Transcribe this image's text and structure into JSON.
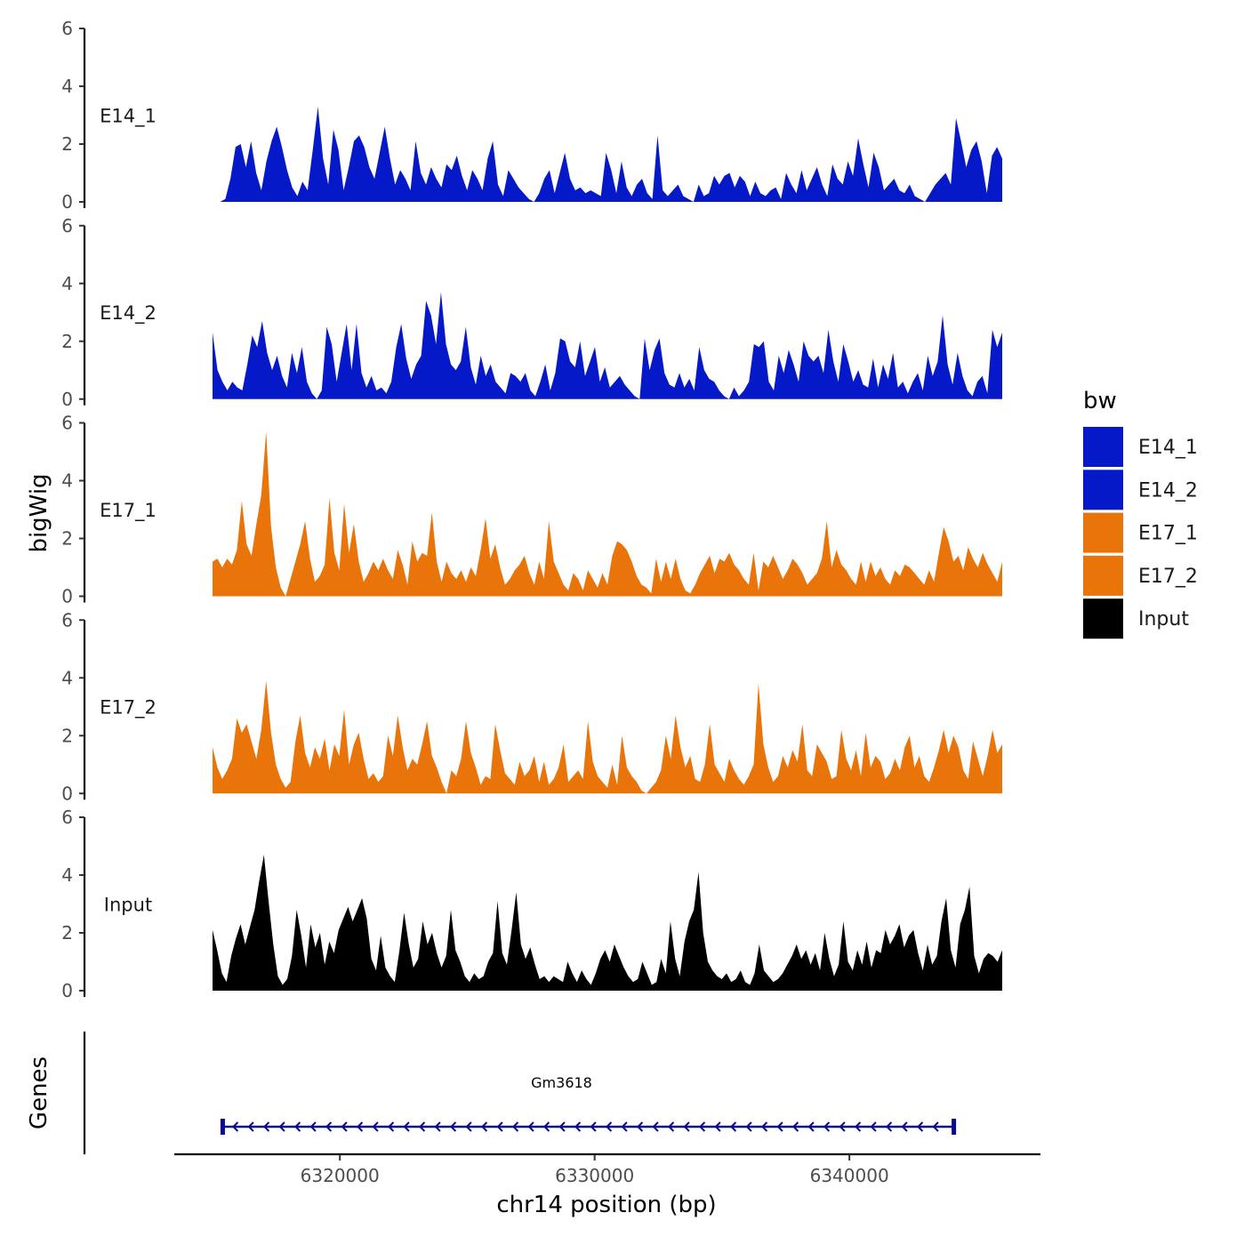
{
  "chart_data": {
    "type": "area",
    "ylabel": "bigWig",
    "xlabel": "chr14 position (bp)",
    "xlim": [
      6313500,
      6347500
    ],
    "ylim": [
      0,
      6
    ],
    "y_ticks": [
      0,
      2,
      4,
      6
    ],
    "x_ticks": [
      6320000,
      6330000,
      6340000
    ],
    "x_tick_labels": [
      "6320000",
      "6330000",
      "6340000"
    ],
    "legend_title": "bw",
    "legend_position": "right",
    "colors": {
      "E14": "#0519C8",
      "E17": "#E8740A",
      "Input": "#000000",
      "gene": "#0A0A8C"
    },
    "series": [
      {
        "name": "E14_1",
        "color": "#0519C8",
        "start": 6315300,
        "end": 6346000,
        "values": [
          0,
          0.1,
          0.8,
          1.9,
          2.0,
          1.2,
          2.1,
          1.0,
          0.4,
          1.4,
          2.1,
          2.6,
          1.9,
          1.1,
          0.5,
          0.2,
          0.7,
          0.4,
          1.8,
          3.3,
          1.5,
          0.6,
          2.5,
          1.8,
          0.4,
          1.2,
          2.1,
          2.3,
          1.9,
          1.2,
          0.8,
          1.7,
          2.6,
          1.5,
          0.6,
          1.1,
          0.8,
          0.4,
          2.1,
          1.0,
          0.6,
          1.2,
          0.8,
          0.5,
          1.3,
          1.1,
          1.6,
          0.9,
          0.4,
          1.1,
          0.8,
          0.4,
          1.5,
          2.1,
          0.6,
          0.2,
          1.1,
          0.8,
          0.5,
          0.3,
          0.1,
          0,
          0.3,
          0.8,
          1.1,
          0.3,
          1.0,
          1.7,
          0.8,
          0.4,
          0.5,
          0.3,
          0.4,
          0.3,
          0.2,
          1.7,
          1.1,
          0.3,
          1.4,
          0.5,
          0.2,
          0.6,
          0.8,
          0.3,
          0.1,
          2.3,
          0.4,
          0.2,
          0.4,
          0.6,
          0.2,
          0.1,
          0,
          0.6,
          0.2,
          0.3,
          0.9,
          0.6,
          0.9,
          1.0,
          0.5,
          0.9,
          0.7,
          0.2,
          0.7,
          0.3,
          0.2,
          0.4,
          0.5,
          0.1,
          1.0,
          0.6,
          0.3,
          1.1,
          0.4,
          0.8,
          1.2,
          0.6,
          0.2,
          1.3,
          0.8,
          0.6,
          1.4,
          0.9,
          2.2,
          1.3,
          0.5,
          1.7,
          1.2,
          0.4,
          0.6,
          0.8,
          0.4,
          0.3,
          0.6,
          0.2,
          0.1,
          0,
          0.3,
          0.6,
          0.8,
          1.0,
          0.6,
          2.9,
          2.1,
          1.2,
          1.8,
          2.1,
          1.4,
          0.3,
          1.6,
          1.9,
          1.5
        ]
      },
      {
        "name": "E14_2",
        "color": "#0519C8",
        "start": 6315000,
        "end": 6346000,
        "values": [
          2.3,
          1.0,
          0.6,
          0.3,
          0.6,
          0.4,
          0.3,
          1.2,
          2.2,
          1.8,
          2.7,
          1.6,
          1.0,
          1.5,
          0.8,
          0.4,
          1.6,
          0.9,
          1.8,
          0.6,
          0.2,
          0,
          0.3,
          2.5,
          1.9,
          0.6,
          1.6,
          2.6,
          1.0,
          2.6,
          0.9,
          0.4,
          0.8,
          0.3,
          0.4,
          0.2,
          0.6,
          1.8,
          2.6,
          1.4,
          0.7,
          1.2,
          1.5,
          3.4,
          2.9,
          1.9,
          3.7,
          1.9,
          1.2,
          1.0,
          1.3,
          2.5,
          1.1,
          0.5,
          1.5,
          0.8,
          1.2,
          0.6,
          0.4,
          0.2,
          0.9,
          0.8,
          0.6,
          0.9,
          0.3,
          0.1,
          0.6,
          1.2,
          0.3,
          0.9,
          2.1,
          2.0,
          1.3,
          1.1,
          2.0,
          0.8,
          1.3,
          1.8,
          0.6,
          1.1,
          0.4,
          0.6,
          0.8,
          0.5,
          0.3,
          0.1,
          0,
          2.1,
          1.0,
          1.7,
          2.1,
          0.9,
          0.5,
          0.4,
          0.9,
          0.4,
          0.7,
          0.3,
          1.8,
          1.0,
          0.7,
          0.6,
          0.3,
          0.1,
          0,
          0.4,
          0.1,
          0.3,
          0.6,
          1.9,
          1.8,
          2.0,
          0.6,
          0.3,
          1.5,
          0.9,
          1.7,
          1.2,
          0.6,
          2.0,
          1.5,
          1.3,
          1.5,
          0.9,
          2.4,
          1.3,
          0.6,
          1.9,
          1.3,
          0.6,
          1.0,
          0.5,
          0.4,
          1.4,
          0.4,
          1.2,
          0.7,
          1.6,
          0.4,
          0.6,
          0.2,
          0.6,
          0.9,
          0.3,
          1.5,
          0.8,
          1.3,
          2.9,
          1.2,
          0.5,
          1.6,
          0.8,
          0.3,
          0.1,
          0.6,
          0.8,
          0.2,
          2.4,
          1.8,
          2.3
        ]
      },
      {
        "name": "E17_1",
        "color": "#E8740A",
        "start": 6315000,
        "end": 6346000,
        "values": [
          1.2,
          1.3,
          1.0,
          1.3,
          1.1,
          1.6,
          3.3,
          1.8,
          1.4,
          2.5,
          3.5,
          5.7,
          2.4,
          1.0,
          0.3,
          0,
          0.6,
          1.2,
          1.8,
          2.6,
          1.3,
          0.5,
          0.7,
          1.1,
          3.4,
          1.5,
          0.9,
          3.2,
          1.5,
          2.5,
          1.2,
          0.5,
          0.8,
          1.2,
          0.9,
          1.3,
          0.9,
          0.6,
          1.6,
          1.1,
          0.4,
          1.9,
          1.2,
          1.5,
          1.4,
          2.9,
          1.2,
          0.5,
          1.2,
          0.8,
          0.6,
          0.9,
          0.5,
          1.0,
          0.7,
          1.6,
          2.7,
          1.3,
          1.8,
          1.0,
          0.4,
          0.6,
          0.9,
          1.1,
          1.4,
          0.8,
          0.4,
          1.2,
          0.6,
          2.6,
          1.2,
          0.8,
          0.4,
          0.2,
          0.8,
          0.6,
          0.2,
          0.9,
          0.6,
          0.3,
          0.8,
          0.4,
          1.4,
          1.9,
          1.8,
          1.6,
          1.2,
          0.7,
          0.4,
          0.3,
          0.1,
          1.3,
          0.5,
          1.2,
          0.6,
          1.3,
          0.6,
          0.2,
          0.1,
          0.4,
          0.8,
          1.1,
          1.4,
          0.8,
          1.3,
          1.2,
          1.5,
          1.1,
          0.9,
          0.6,
          0.4,
          1.5,
          0.2,
          1.2,
          1.0,
          1.4,
          1.0,
          0.6,
          0.9,
          1.3,
          1.1,
          0.8,
          0.4,
          0.6,
          0.8,
          1.3,
          2.6,
          1.0,
          1.6,
          1.1,
          0.9,
          0.6,
          0.4,
          1.2,
          0.5,
          1.2,
          0.7,
          1.0,
          0.6,
          0.4,
          0.9,
          0.7,
          1.1,
          1.0,
          0.8,
          0.6,
          0.4,
          0.9,
          0.5,
          1.5,
          2.4,
          1.9,
          1.2,
          1.4,
          0.9,
          1.7,
          1.3,
          1.0,
          1.5,
          1.1,
          0.8,
          0.5,
          1.2
        ]
      },
      {
        "name": "E17_2",
        "color": "#E8740A",
        "start": 6315000,
        "end": 6346000,
        "values": [
          1.6,
          0.9,
          0.5,
          0.8,
          1.2,
          2.6,
          2.1,
          2.4,
          1.8,
          1.2,
          2.2,
          3.9,
          2.1,
          1.0,
          0.5,
          0.2,
          0.4,
          1.8,
          2.7,
          1.4,
          0.9,
          1.6,
          1.2,
          1.9,
          0.8,
          1.7,
          1.3,
          2.9,
          1.0,
          1.7,
          2.1,
          1.2,
          0.5,
          0.7,
          0.4,
          0.6,
          2.0,
          1.3,
          2.7,
          1.6,
          0.8,
          1.2,
          1.0,
          1.7,
          2.5,
          1.3,
          0.9,
          0.4,
          0,
          0.8,
          0.6,
          1.2,
          2.5,
          1.4,
          0.9,
          0.3,
          0.6,
          0.5,
          2.4,
          1.5,
          0.7,
          0.5,
          0.3,
          1.1,
          0.6,
          0.8,
          1.3,
          0.4,
          1.1,
          0.3,
          0.5,
          0.9,
          1.7,
          0.4,
          0.6,
          0.8,
          0.5,
          2.5,
          1.1,
          0.6,
          0.4,
          0.2,
          1.0,
          0.3,
          2.0,
          0.9,
          0.6,
          0.4,
          0.1,
          0,
          0.2,
          0.4,
          0.8,
          2.0,
          1.2,
          2.7,
          1.6,
          0.9,
          1.3,
          0.5,
          0.4,
          1.0,
          2.4,
          1.0,
          0.7,
          0.4,
          1.2,
          0.8,
          0.5,
          0.3,
          0.6,
          1.0,
          3.8,
          1.7,
          0.9,
          0.4,
          0.6,
          1.3,
          0.9,
          1.5,
          1.1,
          2.4,
          0.8,
          0.6,
          1.7,
          1.4,
          1.1,
          0.5,
          0.6,
          2.2,
          1.2,
          0.8,
          1.5,
          0.6,
          2.1,
          0.9,
          1.3,
          1.1,
          0.5,
          0.7,
          1.2,
          0.8,
          1.6,
          2.0,
          0.9,
          1.3,
          0.6,
          0.4,
          0.9,
          1.5,
          2.2,
          1.4,
          2.0,
          1.6,
          0.8,
          0.5,
          1.8,
          1.2,
          0.6,
          1.3,
          2.2,
          1.4,
          1.7
        ]
      },
      {
        "name": "Input",
        "color": "#000000",
        "start": 6315000,
        "end": 6346000,
        "values": [
          2.1,
          1.4,
          0.6,
          0.3,
          1.2,
          1.8,
          2.3,
          1.6,
          2.2,
          2.8,
          3.8,
          4.7,
          3.1,
          1.6,
          0.5,
          0.2,
          0.4,
          1.2,
          2.8,
          1.9,
          0.8,
          2.3,
          1.5,
          2.0,
          0.9,
          1.7,
          1.3,
          2.1,
          2.5,
          2.9,
          2.4,
          2.8,
          3.2,
          2.5,
          1.1,
          0.7,
          1.9,
          0.8,
          0.5,
          0.3,
          1.4,
          2.7,
          1.6,
          0.8,
          1.1,
          2.4,
          1.6,
          2.0,
          1.3,
          0.8,
          1.2,
          2.8,
          1.4,
          1.0,
          0.5,
          0.3,
          0.6,
          0.4,
          0.5,
          1.0,
          1.3,
          3.1,
          1.3,
          0.9,
          2.1,
          3.4,
          1.6,
          1.1,
          1.5,
          0.9,
          0.4,
          0.5,
          0.3,
          0.5,
          0.4,
          0.3,
          1.0,
          0.6,
          0.3,
          0.7,
          0.4,
          0.2,
          0.6,
          1.1,
          1.4,
          1.0,
          1.6,
          1.2,
          0.8,
          0.5,
          0.3,
          0.4,
          1.0,
          0.6,
          0.2,
          0.3,
          1.1,
          0.6,
          2.4,
          1.1,
          0.5,
          1.7,
          2.4,
          2.8,
          4.1,
          2.0,
          1.0,
          0.7,
          0.5,
          0.4,
          0.6,
          0.3,
          0.4,
          0.7,
          0.3,
          0.2,
          0.6,
          1.6,
          0.7,
          0.5,
          0.3,
          0.4,
          0.6,
          0.9,
          1.2,
          1.6,
          1.1,
          1.4,
          0.9,
          1.3,
          0.7,
          2.0,
          1.1,
          0.5,
          0.9,
          2.4,
          1.0,
          0.7,
          1.4,
          0.9,
          1.7,
          0.8,
          1.4,
          1.3,
          2.1,
          1.6,
          1.9,
          2.3,
          1.5,
          1.9,
          2.1,
          1.3,
          0.7,
          1.6,
          0.9,
          1.2,
          2.4,
          3.2,
          1.4,
          0.8,
          2.3,
          2.8,
          3.6,
          1.2,
          0.6,
          1.1,
          1.3,
          1.2,
          1.0,
          1.4
        ]
      }
    ],
    "genes": [
      {
        "name": "Gm3618",
        "start": 6315400,
        "end": 6344100,
        "strand": "-"
      }
    ],
    "genes_track_label": "Genes"
  }
}
